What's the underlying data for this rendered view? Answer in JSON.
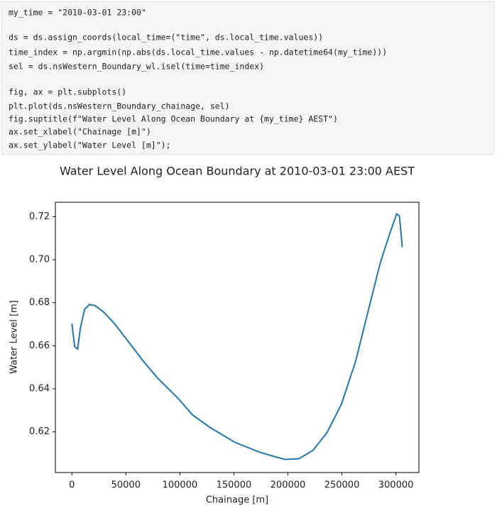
{
  "code": {
    "lines": [
      "my_time = \"2010-03-01 23:00\"",
      "ds = ds.assign_coords(local_time=(\"time\", ds.local_time.values))",
      "time_index = np.argmin(np.abs(ds.local_time.values - np.datetime64(my_time)))",
      "sel = ds.nsWestern_Boundary_wl.isel(time=time_index)",
      "fig, ax = plt.subplots()",
      "plt.plot(ds.nsWestern_Boundary_chainage, sel)",
      "fig.suptitle(f\"Water Level Along Ocean Boundary at {my_time} AEST\")",
      "ax.set_xlabel(\"Chainage [m]\")",
      "ax.set_ylabel(\"Water Level [m]\");"
    ]
  },
  "chart_data": {
    "type": "line",
    "title": "Water Level Along Ocean Boundary at 2010-03-01 23:00 AEST",
    "x_label": "Chainage [m]",
    "y_label": "Water Level [m]",
    "x": [
      0,
      2600,
      5300,
      7900,
      11800,
      16400,
      21700,
      29500,
      39400,
      52500,
      65600,
      78800,
      98500,
      111600,
      128000,
      151000,
      174000,
      196900,
      210100,
      223200,
      236300,
      249500,
      262600,
      275700,
      285600,
      294100,
      300700,
      303300,
      305900
    ],
    "series": [
      {
        "name": "sel",
        "color": "#1f77b4",
        "values": [
          0.6703,
          0.6595,
          0.6585,
          0.6684,
          0.677,
          0.6792,
          0.6786,
          0.6756,
          0.6703,
          0.6618,
          0.6532,
          0.6453,
          0.6355,
          0.6279,
          0.622,
          0.6151,
          0.6105,
          0.6072,
          0.6075,
          0.6114,
          0.6197,
          0.6328,
          0.6526,
          0.6789,
          0.6986,
          0.7118,
          0.7213,
          0.7203,
          0.7058
        ]
      }
    ],
    "xlim": [
      -15300,
      321300
    ],
    "xticks": [
      0,
      50000,
      100000,
      150000,
      200000,
      250000,
      300000
    ],
    "ylim": [
      0.6011,
      0.7267
    ],
    "yticks": [
      0.62,
      0.64,
      0.66,
      0.68,
      {
        "value": 0.7,
        "label": "0.70"
      },
      0.72
    ],
    "grid": false
  }
}
